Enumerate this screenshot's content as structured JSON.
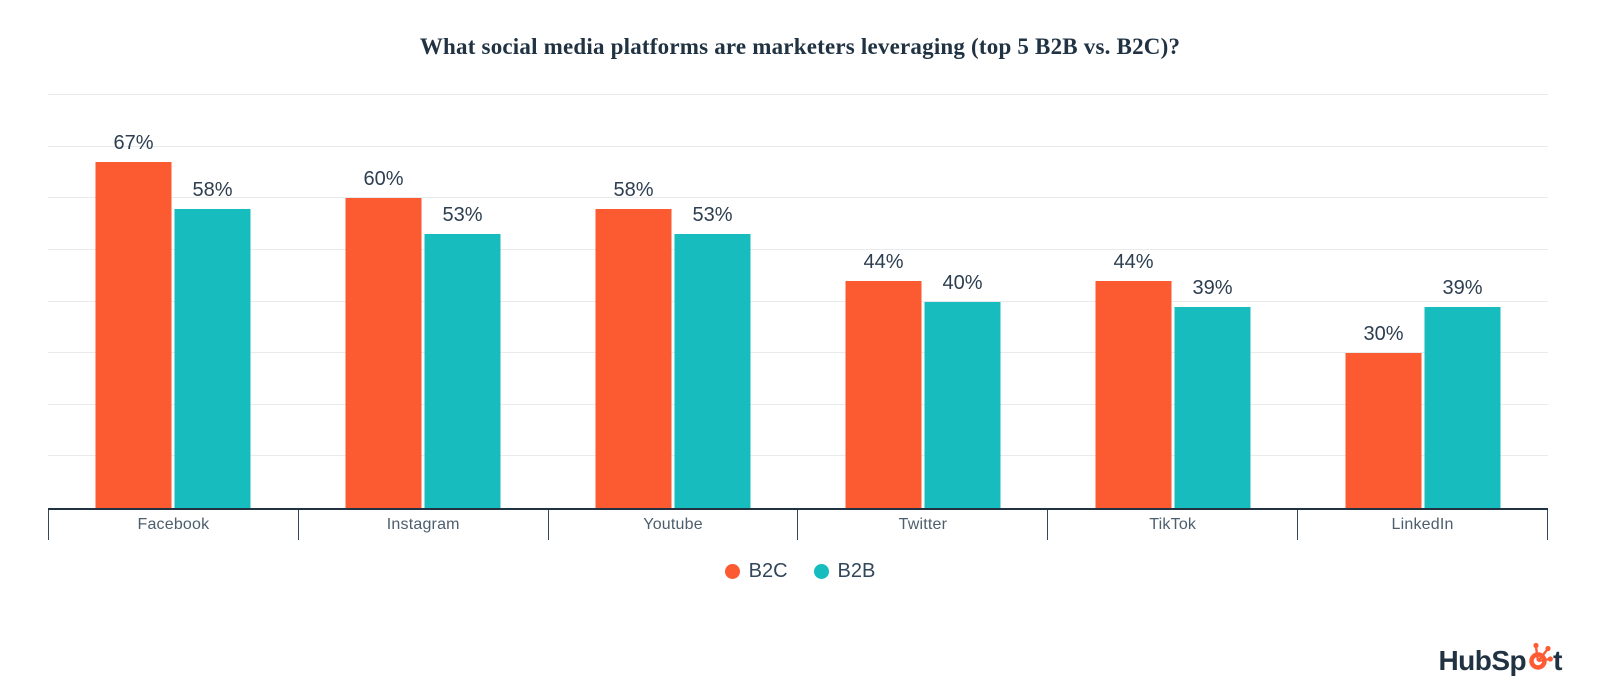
{
  "title": "What social media platforms are marketers leveraging (top 5 B2B vs. B2C)?",
  "chart_data": {
    "type": "bar",
    "title": "What social media platforms are marketers leveraging (top 5 B2B vs. B2C)?",
    "categories": [
      "Facebook",
      "Instagram",
      "Youtube",
      "Twitter",
      "TikTok",
      "LinkedIn"
    ],
    "series": [
      {
        "name": "B2C",
        "color": "#FC5A31",
        "values": [
          67,
          60,
          58,
          44,
          44,
          30
        ]
      },
      {
        "name": "B2B",
        "color": "#17BCBE",
        "values": [
          58,
          53,
          53,
          40,
          39,
          39
        ]
      }
    ],
    "value_suffix": "%",
    "xlabel": "",
    "ylabel": "",
    "ylim": [
      0,
      80
    ],
    "gridline_step": 10,
    "grid": true,
    "legend_position": "bottom"
  },
  "legend": {
    "items": [
      {
        "label": "B2C",
        "color": "#FC5A31"
      },
      {
        "label": "B2B",
        "color": "#17BCBE"
      }
    ]
  },
  "branding": {
    "logo_name": "HubSpot",
    "logo_prefix": "HubSp",
    "logo_suffix": "t",
    "sprocket_color": "#FF5C35",
    "text_color": "#213343"
  },
  "colors": {
    "title": "#213343",
    "data_label": "#2d3e50",
    "category_label": "#4d5e6d",
    "gridline": "#e8eaec",
    "axis_line": "#213343",
    "background": "#ffffff"
  }
}
